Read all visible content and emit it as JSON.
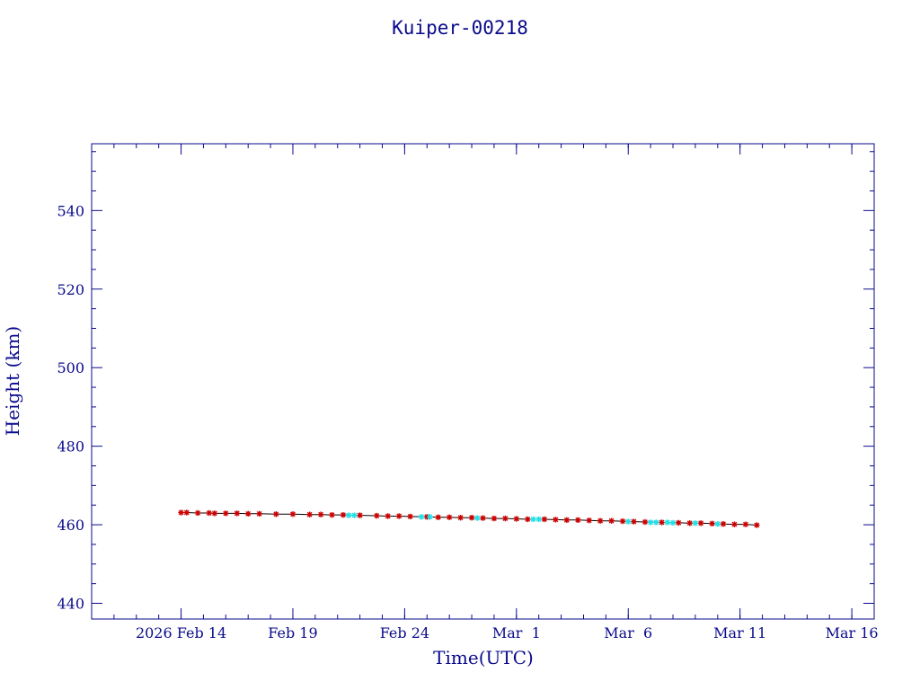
{
  "chart_data": {
    "type": "scatter",
    "title": "Kuiper-00218",
    "xlabel": "Time(UTC)",
    "ylabel": "Height (km)",
    "x_range": [
      "2026-02-10",
      "2026-03-17"
    ],
    "ylim": [
      436,
      557
    ],
    "x_ticks": [
      {
        "label": "2026 Feb 14",
        "date": "2026-02-14"
      },
      {
        "label": "Feb 19",
        "date": "2026-02-19"
      },
      {
        "label": "Feb 24",
        "date": "2026-02-24"
      },
      {
        "label": "Mar  1",
        "date": "2026-03-01"
      },
      {
        "label": "Mar  6",
        "date": "2026-03-06"
      },
      {
        "label": "Mar 11",
        "date": "2026-03-11"
      },
      {
        "label": "Mar 16",
        "date": "2026-03-16"
      }
    ],
    "y_ticks": [
      440,
      460,
      480,
      500,
      520,
      540
    ],
    "grid": false,
    "colors": {
      "axis": "#0a0a8c",
      "line": "#000000",
      "series_red": "#cc0000",
      "series_cyan": "#22e0e8"
    },
    "series": [
      {
        "color": "#cc0000",
        "marker": "star",
        "points": [
          {
            "x": "2026-02-14T00:00",
            "y": 463.1
          },
          {
            "x": "2026-02-14T06:00",
            "y": 463.1
          },
          {
            "x": "2026-02-14T18:00",
            "y": 463.0
          },
          {
            "x": "2026-02-15T06:00",
            "y": 463.0
          },
          {
            "x": "2026-02-15T12:00",
            "y": 462.9
          },
          {
            "x": "2026-02-16T00:00",
            "y": 462.9
          },
          {
            "x": "2026-02-16T12:00",
            "y": 462.9
          },
          {
            "x": "2026-02-17T00:00",
            "y": 462.8
          },
          {
            "x": "2026-02-17T12:00",
            "y": 462.8
          },
          {
            "x": "2026-02-18T06:00",
            "y": 462.7
          },
          {
            "x": "2026-02-19T00:00",
            "y": 462.7
          },
          {
            "x": "2026-02-19T18:00",
            "y": 462.6
          },
          {
            "x": "2026-02-20T06:00",
            "y": 462.6
          },
          {
            "x": "2026-02-20T18:00",
            "y": 462.5
          },
          {
            "x": "2026-02-21T06:00",
            "y": 462.5
          },
          {
            "x": "2026-02-22T00:00",
            "y": 462.4
          },
          {
            "x": "2026-02-22T18:00",
            "y": 462.3
          },
          {
            "x": "2026-02-23T06:00",
            "y": 462.2
          },
          {
            "x": "2026-02-23T18:00",
            "y": 462.2
          },
          {
            "x": "2026-02-24T06:00",
            "y": 462.1
          },
          {
            "x": "2026-02-25T00:00",
            "y": 462.0
          },
          {
            "x": "2026-02-25T12:00",
            "y": 461.9
          },
          {
            "x": "2026-02-26T00:00",
            "y": 461.9
          },
          {
            "x": "2026-02-26T12:00",
            "y": 461.8
          },
          {
            "x": "2026-02-27T00:00",
            "y": 461.8
          },
          {
            "x": "2026-02-27T12:00",
            "y": 461.7
          },
          {
            "x": "2026-02-28T00:00",
            "y": 461.6
          },
          {
            "x": "2026-02-28T12:00",
            "y": 461.6
          },
          {
            "x": "2026-03-01T00:00",
            "y": 461.5
          },
          {
            "x": "2026-03-01T12:00",
            "y": 461.4
          },
          {
            "x": "2026-03-02T06:00",
            "y": 461.4
          },
          {
            "x": "2026-03-02T18:00",
            "y": 461.3
          },
          {
            "x": "2026-03-03T06:00",
            "y": 461.2
          },
          {
            "x": "2026-03-03T18:00",
            "y": 461.2
          },
          {
            "x": "2026-03-04T06:00",
            "y": 461.1
          },
          {
            "x": "2026-03-04T18:00",
            "y": 461.0
          },
          {
            "x": "2026-03-05T06:00",
            "y": 461.0
          },
          {
            "x": "2026-03-05T18:00",
            "y": 460.9
          },
          {
            "x": "2026-03-06T06:00",
            "y": 460.8
          },
          {
            "x": "2026-03-06T18:00",
            "y": 460.7
          },
          {
            "x": "2026-03-07T12:00",
            "y": 460.6
          },
          {
            "x": "2026-03-08T06:00",
            "y": 460.5
          },
          {
            "x": "2026-03-08T18:00",
            "y": 460.4
          },
          {
            "x": "2026-03-09T06:00",
            "y": 460.4
          },
          {
            "x": "2026-03-09T18:00",
            "y": 460.3
          },
          {
            "x": "2026-03-10T06:00",
            "y": 460.2
          },
          {
            "x": "2026-03-10T18:00",
            "y": 460.1
          },
          {
            "x": "2026-03-11T06:00",
            "y": 460.1
          },
          {
            "x": "2026-03-11T18:00",
            "y": 459.9
          }
        ]
      },
      {
        "color": "#22e0e8",
        "marker": "star",
        "points": [
          {
            "x": "2026-02-21T12:00",
            "y": 462.4
          },
          {
            "x": "2026-02-21T18:00",
            "y": 462.4
          },
          {
            "x": "2026-02-24T18:00",
            "y": 462.0
          },
          {
            "x": "2026-02-25T03:00",
            "y": 462.0
          },
          {
            "x": "2026-02-27T06:00",
            "y": 461.7
          },
          {
            "x": "2026-03-01T18:00",
            "y": 461.4
          },
          {
            "x": "2026-03-02T00:00",
            "y": 461.4
          },
          {
            "x": "2026-03-06T00:00",
            "y": 460.8
          },
          {
            "x": "2026-03-07T00:00",
            "y": 460.6
          },
          {
            "x": "2026-03-07T06:00",
            "y": 460.6
          },
          {
            "x": "2026-03-07T18:00",
            "y": 460.6
          },
          {
            "x": "2026-03-08T00:00",
            "y": 460.5
          },
          {
            "x": "2026-03-09T00:00",
            "y": 460.4
          },
          {
            "x": "2026-03-10T00:00",
            "y": 460.2
          }
        ]
      }
    ]
  }
}
